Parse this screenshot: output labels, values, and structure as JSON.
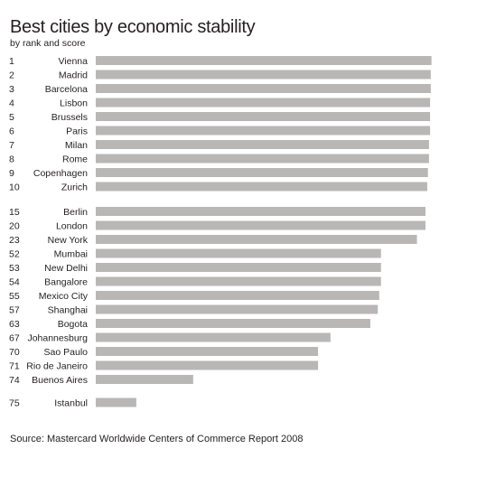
{
  "title": "Best cities by economic stability",
  "subtitle": "by rank and score",
  "source": "Source: Mastercard Worldwide Centers of Commerce Report 2008",
  "colors": {
    "bar": "#b9b6b6",
    "text": "#231f20",
    "background": "#ffffff"
  },
  "chart_data": {
    "type": "bar",
    "orientation": "horizontal",
    "title": "Best cities by economic stability",
    "subtitle": "by rank and score",
    "xlabel": "",
    "ylabel": "",
    "xlim": [
      0,
      95
    ],
    "grid": false,
    "legend": "none",
    "groups": [
      {
        "rows": [
          {
            "rank": "1",
            "city": "Vienna",
            "value": 94.4
          },
          {
            "rank": "2",
            "city": "Madrid",
            "value": 94.2
          },
          {
            "rank": "3",
            "city": "Barcelona",
            "value": 94.2
          },
          {
            "rank": "4",
            "city": "Lisbon",
            "value": 94.0
          },
          {
            "rank": "5",
            "city": "Brussels",
            "value": 94.0
          },
          {
            "rank": "6",
            "city": "Paris",
            "value": 94.0
          },
          {
            "rank": "7",
            "city": "Milan",
            "value": 93.7
          },
          {
            "rank": "8",
            "city": "Rome",
            "value": 93.7
          },
          {
            "rank": "9",
            "city": "Copenhagen",
            "value": 93.4
          },
          {
            "rank": "10",
            "city": "Zurich",
            "value": 93.2
          }
        ]
      },
      {
        "rows": [
          {
            "rank": "15",
            "city": "Berlin",
            "value": 92.7
          },
          {
            "rank": "20",
            "city": "London",
            "value": 92.7
          },
          {
            "rank": "23",
            "city": "New York",
            "value": 90.3
          },
          {
            "rank": "52",
            "city": "Mumbai",
            "value": 80.2
          },
          {
            "rank": "53",
            "city": "New Delhi",
            "value": 80.2
          },
          {
            "rank": "54",
            "city": "Bangalore",
            "value": 80.2
          },
          {
            "rank": "55",
            "city": "Mexico City",
            "value": 79.7
          },
          {
            "rank": "57",
            "city": "Shanghai",
            "value": 79.3
          },
          {
            "rank": "63",
            "city": "Bogota",
            "value": 77.2
          },
          {
            "rank": "67",
            "city": "Johannesburg",
            "value": 66.0
          },
          {
            "rank": "70",
            "city": "Sao Paulo",
            "value": 62.5
          },
          {
            "rank": "71",
            "city": "Rio de Janeiro",
            "value": 62.5
          },
          {
            "rank": "74",
            "city": "Buenos Aires",
            "value": 27.4
          }
        ]
      },
      {
        "rows": [
          {
            "rank": "75",
            "city": "Istanbul",
            "value": 11.4
          }
        ]
      }
    ]
  }
}
